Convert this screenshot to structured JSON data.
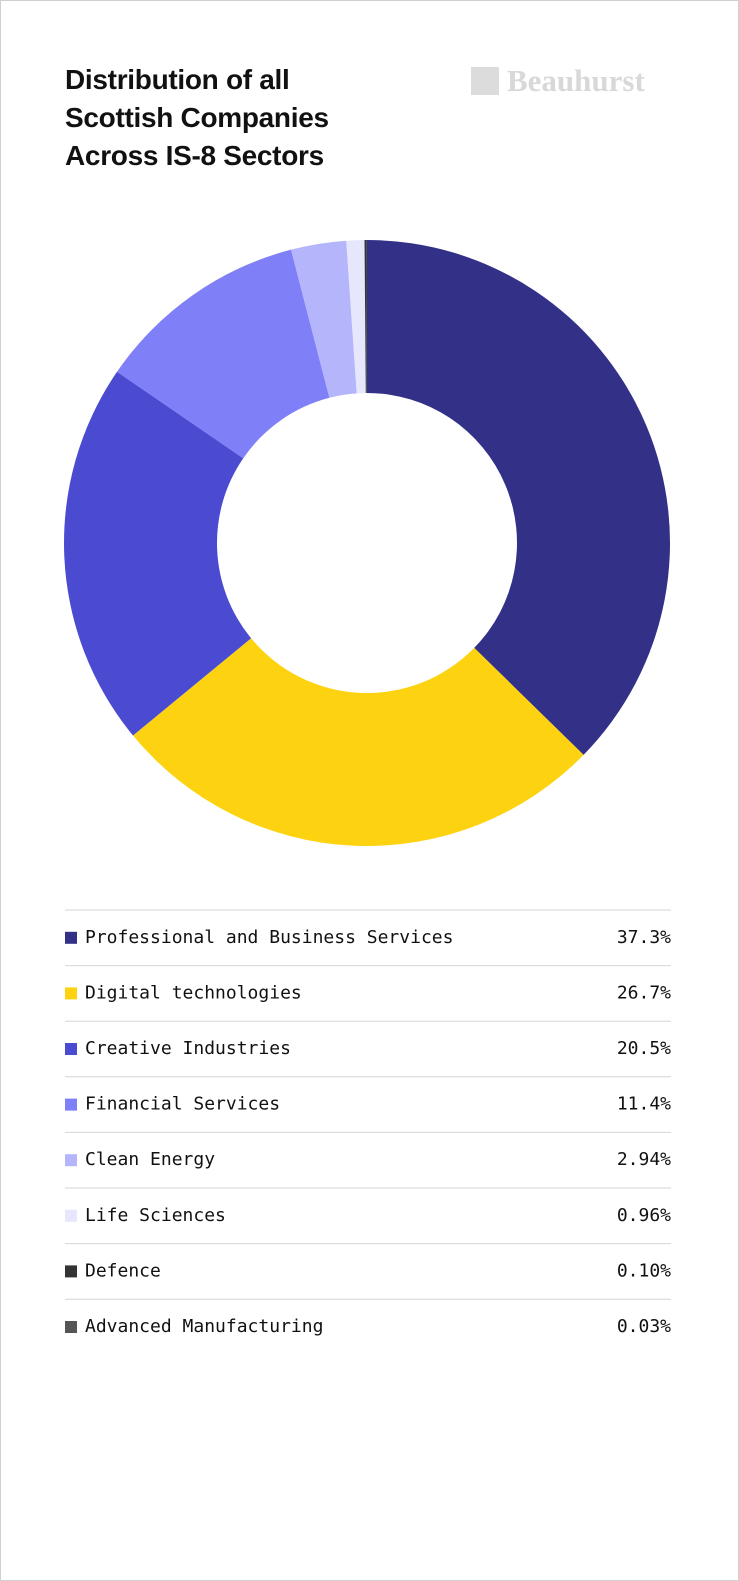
{
  "brand": "Beauhurst",
  "chart_data": {
    "type": "donut",
    "title": "Distribution of all Scottish Companies Across IS-8 Sectors",
    "categories": [
      "Professional and Business Services",
      "Digital technologies",
      "Creative Industries",
      "Financial Services",
      "Clean Energy",
      "Life Sciences",
      "Defence",
      "Advanced Manufacturing"
    ],
    "values": [
      37.3,
      26.7,
      20.5,
      11.4,
      2.94,
      0.96,
      0.1,
      0.03
    ],
    "value_labels": [
      "37.3%",
      "26.7%",
      "20.5%",
      "11.4%",
      "2.94%",
      "0.96%",
      "0.10%",
      "0.03%"
    ],
    "colors": [
      "#333087",
      "#fdd311",
      "#4b4bd2",
      "#7f7ff8",
      "#b5b5fb",
      "#e6e6fc",
      "#333333",
      "#555555"
    ]
  }
}
